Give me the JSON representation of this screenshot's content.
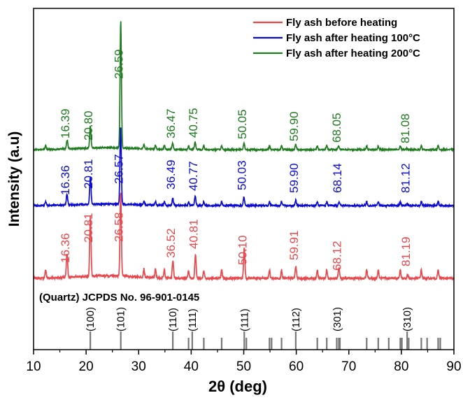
{
  "chart_data": {
    "type": "line",
    "xlabel": "2θ (deg)",
    "ylabel": "Intensity (a.u)",
    "xlim": [
      10,
      90
    ],
    "x_ticks": [
      "10",
      "20",
      "30",
      "40",
      "50",
      "60",
      "70",
      "80",
      "90"
    ],
    "legend_position": "top-right",
    "y_ticks_shown": false,
    "grid": false,
    "series": [
      {
        "name": "Fly ash before heating",
        "color": "#e8474b",
        "peaks": [
          {
            "x": 16.36,
            "label": "16.36",
            "height": 0.28
          },
          {
            "x": 20.81,
            "label": "20.81",
            "height": 0.72
          },
          {
            "x": 26.58,
            "label": "26.58",
            "height": 1.0
          },
          {
            "x": 36.52,
            "label": "36.52",
            "height": 0.21
          },
          {
            "x": 40.81,
            "label": "40.81",
            "height": 0.29
          },
          {
            "x": 50.1,
            "label": "50.10",
            "height": 0.37
          },
          {
            "x": 59.91,
            "label": "59.91",
            "height": 0.14
          },
          {
            "x": 68.12,
            "label": "68.12",
            "height": 0.12
          },
          {
            "x": 81.19,
            "label": "81.19",
            "height": 0.04
          }
        ]
      },
      {
        "name": "Fly ash after heating 100°C",
        "color": "#0a0ad2",
        "peaks": [
          {
            "x": 16.36,
            "label": "16.36",
            "height": 0.14
          },
          {
            "x": 20.81,
            "label": "20.81",
            "height": 0.35
          },
          {
            "x": 26.57,
            "label": "26.57",
            "height": 1.0
          },
          {
            "x": 36.49,
            "label": "36.49",
            "height": 0.09
          },
          {
            "x": 40.77,
            "label": "40.77",
            "height": 0.12
          },
          {
            "x": 50.03,
            "label": "50.03",
            "height": 0.11
          },
          {
            "x": 59.9,
            "label": "59.90",
            "height": 0.07
          },
          {
            "x": 68.14,
            "label": "68.14",
            "height": 0.05
          },
          {
            "x": 81.12,
            "label": "81.12",
            "height": 0.02
          }
        ]
      },
      {
        "name": "Fly ash after heating 200°C",
        "color": "#1e7a1e",
        "peaks": [
          {
            "x": 16.39,
            "label": "16.39",
            "height": 0.07
          },
          {
            "x": 20.8,
            "label": "20.80",
            "height": 0.17
          },
          {
            "x": 26.59,
            "label": "26.59",
            "height": 1.0
          },
          {
            "x": 36.47,
            "label": "36.47",
            "height": 0.05
          },
          {
            "x": 40.75,
            "label": "40.75",
            "height": 0.06
          },
          {
            "x": 50.05,
            "label": "50.05",
            "height": 0.05
          },
          {
            "x": 59.9,
            "label": "59.90",
            "height": 0.04
          },
          {
            "x": 68.05,
            "label": "68.05",
            "height": 0.03
          },
          {
            "x": 81.08,
            "label": "81.08",
            "height": 0.01
          }
        ]
      }
    ],
    "reference": {
      "title": "(Quartz) JCPDS No. 96-901-0145",
      "hkl": [
        {
          "x": 20.8,
          "label": "(100)"
        },
        {
          "x": 26.6,
          "label": "(101)"
        },
        {
          "x": 36.5,
          "label": "(110)"
        },
        {
          "x": 40.2,
          "label": "(111)"
        },
        {
          "x": 50.1,
          "label": "(111)"
        },
        {
          "x": 59.9,
          "label": "(112)"
        },
        {
          "x": 67.8,
          "label": "(301)"
        },
        {
          "x": 81.1,
          "label": "(310)"
        }
      ],
      "lines": [
        20.8,
        26.6,
        36.5,
        39.5,
        40.2,
        42.4,
        45.8,
        50.1,
        50.5,
        54.9,
        55.3,
        57.2,
        59.9,
        64.0,
        65.8,
        67.7,
        68.1,
        68.3,
        73.4,
        75.6,
        77.6,
        79.8,
        80.1,
        81.1,
        81.4,
        83.8,
        84.9,
        87.0,
        87.4
      ]
    }
  }
}
